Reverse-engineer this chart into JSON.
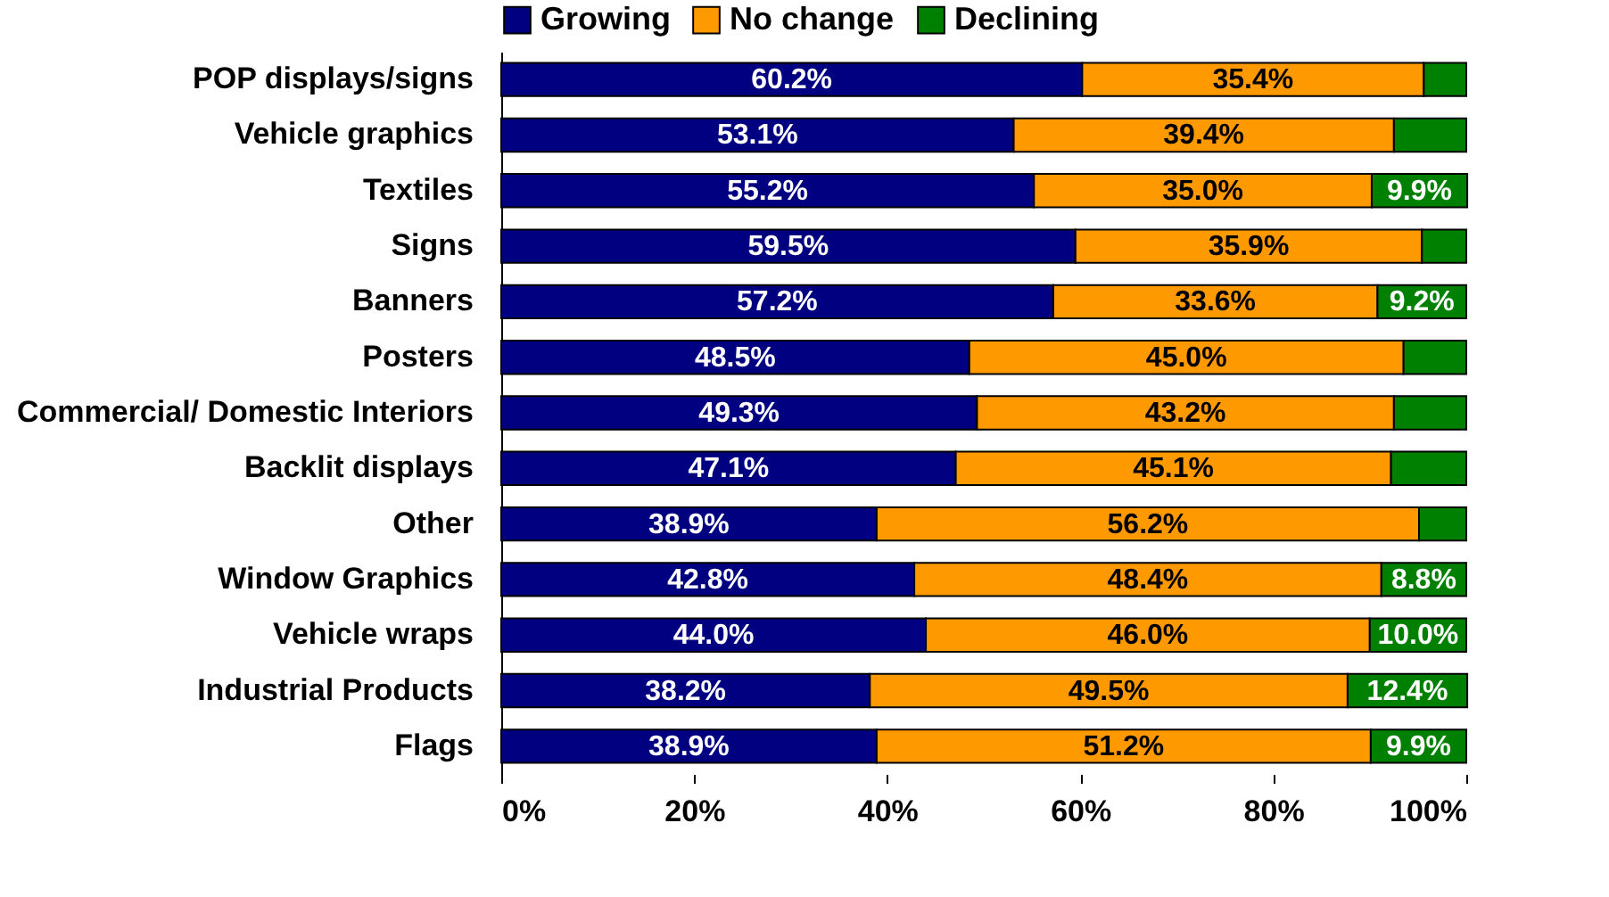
{
  "chart_data": {
    "type": "bar",
    "orientation": "horizontal",
    "stacked": true,
    "legend": "top",
    "categories": [
      "POP displays/signs",
      "Vehicle graphics",
      "Textiles",
      "Signs",
      "Banners",
      "Posters",
      "Commercial/ Domestic Interiors",
      "Backlit displays",
      "Other",
      "Window Graphics",
      "Vehicle wraps",
      "Industrial Products",
      "Flags"
    ],
    "series": [
      {
        "name": "Growing",
        "color": "#000080",
        "values": [
          60.2,
          53.1,
          55.2,
          59.5,
          57.2,
          48.5,
          49.3,
          47.1,
          38.9,
          42.8,
          44.0,
          38.2,
          38.9
        ],
        "value_labels": [
          "60.2%",
          "53.1%",
          "55.2%",
          "59.5%",
          "57.2%",
          "48.5%",
          "49.3%",
          "47.1%",
          "38.9%",
          "42.8%",
          "44.0%",
          "38.2%",
          "38.9%"
        ]
      },
      {
        "name": "No change",
        "color": "#ff9900",
        "values": [
          35.4,
          39.4,
          35.0,
          35.9,
          33.6,
          45.0,
          43.2,
          45.1,
          56.2,
          48.4,
          46.0,
          49.5,
          51.2
        ],
        "value_labels": [
          "35.4%",
          "39.4%",
          "35.0%",
          "35.9%",
          "33.6%",
          "45.0%",
          "43.2%",
          "45.1%",
          "56.2%",
          "48.4%",
          "46.0%",
          "49.5%",
          "51.2%"
        ]
      },
      {
        "name": "Declining",
        "color": "#008000",
        "values": [
          4.4,
          7.5,
          9.9,
          4.6,
          9.2,
          6.5,
          7.5,
          7.8,
          4.9,
          8.8,
          10.0,
          12.4,
          9.9
        ],
        "value_labels": [
          null,
          null,
          "9.9%",
          null,
          "9.2%",
          null,
          null,
          null,
          null,
          "8.8%",
          "10.0%",
          "12.4%",
          "9.9%"
        ]
      }
    ],
    "xlim": [
      0,
      100
    ],
    "xticks": [
      {
        "value": 0,
        "label": "0%"
      },
      {
        "value": 20,
        "label": "20%"
      },
      {
        "value": 40,
        "label": "40%"
      },
      {
        "value": 60,
        "label": "60%"
      },
      {
        "value": 80,
        "label": "80%"
      },
      {
        "value": 100,
        "label": "100%"
      }
    ]
  }
}
